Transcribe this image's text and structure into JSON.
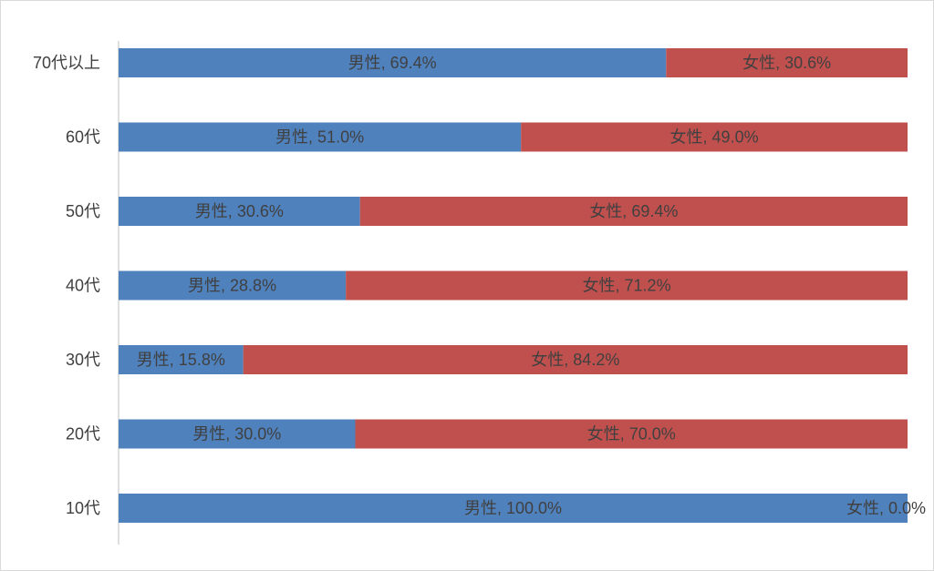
{
  "chart_data": {
    "type": "bar",
    "orientation": "horizontal",
    "stacked": "100%",
    "categories": [
      "70代以上",
      "60代",
      "50代",
      "40代",
      "30代",
      "20代",
      "10代"
    ],
    "series": [
      {
        "name": "男性",
        "color": "#4f81bd",
        "values": [
          69.4,
          51.0,
          30.6,
          28.8,
          15.8,
          30.0,
          100.0
        ],
        "labels": [
          "男性, 69.4%",
          "男性, 51.0%",
          "男性, 30.6%",
          "男性, 28.8%",
          "男性, 15.8%",
          "男性, 30.0%",
          "男性, 100.0%"
        ]
      },
      {
        "name": "女性",
        "color": "#c0504d",
        "values": [
          30.6,
          49.0,
          69.4,
          71.2,
          84.2,
          70.0,
          0.0
        ],
        "labels": [
          "女性, 30.6%",
          "女性, 49.0%",
          "女性, 69.4%",
          "女性, 71.2%",
          "女性, 84.2%",
          "女性, 70.0%",
          "女性, 0.0%"
        ]
      }
    ],
    "xlim": [
      0,
      100
    ],
    "grid": false,
    "legend": "none"
  }
}
